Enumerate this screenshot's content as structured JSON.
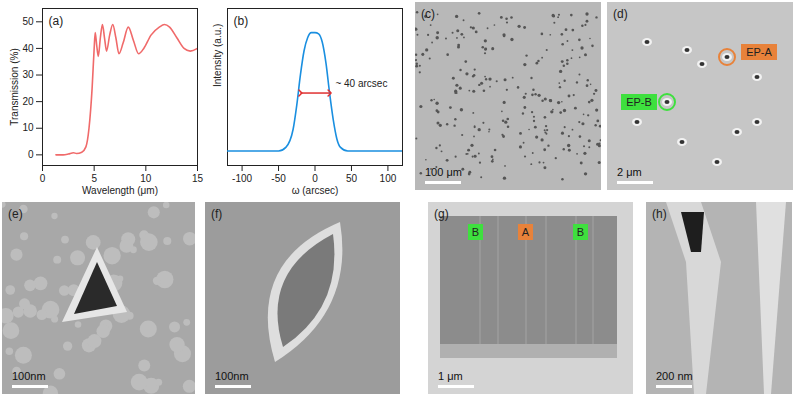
{
  "chart_data": [
    {
      "type": "line",
      "panel_label": "(a)",
      "x_label": "Wavelength (μm)",
      "y_label": "Transmission (%)",
      "color": "#f06a6a",
      "xlim": [
        0,
        15
      ],
      "xticks": [
        0,
        5,
        10,
        15
      ],
      "ylim": [
        -4,
        55
      ],
      "yticks": [
        0,
        10,
        20,
        30,
        40,
        50
      ],
      "x": [
        1.3,
        2,
        2.5,
        3,
        3.3,
        3.8,
        4.2,
        4.5,
        4.8,
        5.0,
        5.1,
        5.25,
        5.4,
        5.6,
        5.8,
        6.0,
        6.2,
        6.5,
        6.8,
        7.1,
        7.4,
        7.8,
        8.3,
        8.8,
        9.3,
        9.8,
        10.5,
        11.3,
        11.8,
        12.3,
        13,
        13.7,
        14.3,
        15
      ],
      "values": [
        0,
        0,
        0.3,
        0.8,
        0.5,
        1,
        3,
        10,
        25,
        40,
        46,
        41,
        37,
        44,
        49,
        44,
        39,
        45,
        49,
        44,
        38,
        42,
        48,
        43,
        38,
        40,
        45,
        48,
        49,
        48,
        44,
        40,
        39,
        40
      ]
    },
    {
      "type": "line",
      "panel_label": "(b)",
      "x_label": "ω (arcsec)",
      "y_label": "Intensity (a.u.)",
      "color": "#1a8fe0",
      "tick_labels": "x",
      "xlim": [
        -120,
        120
      ],
      "xticks": [
        -100,
        -50,
        0,
        50,
        100
      ],
      "ylim": [
        -0.1,
        1.2
      ],
      "x": [
        -120,
        -50,
        -40,
        -30,
        -25,
        -20,
        -15,
        -10,
        -5,
        0,
        5,
        10,
        15,
        20,
        25,
        30,
        35,
        45,
        120
      ],
      "values": [
        0.02,
        0.02,
        0.05,
        0.2,
        0.4,
        0.65,
        0.85,
        0.96,
        1.0,
        1.0,
        0.99,
        0.92,
        0.75,
        0.5,
        0.28,
        0.12,
        0.05,
        0.02,
        0.02
      ],
      "annotation": {
        "text": "~ 40 arcsec",
        "x": 28,
        "y": 0.58,
        "span": [
          -20,
          20
        ],
        "arrow_y": 0.5,
        "color": "#e03030"
      }
    }
  ],
  "images": [
    {
      "panel_label": "(c)",
      "scale_bar": "100 μm"
    },
    {
      "panel_label": "(d)",
      "scale_bar": "2 μm",
      "tags": [
        {
          "text": "EP-A",
          "color": "#e8823a"
        },
        {
          "text": "EP-B",
          "color": "#3ee03e"
        }
      ]
    },
    {
      "panel_label": "(e)",
      "scale_bar": "100nm"
    },
    {
      "panel_label": "(f)",
      "scale_bar": "100nm"
    },
    {
      "panel_label": "(g)",
      "scale_bar": "1 μm",
      "tags": [
        {
          "text": "B",
          "color": "#3ee03e"
        },
        {
          "text": "A",
          "color": "#e8823a"
        },
        {
          "text": "B",
          "color": "#3ee03e"
        }
      ]
    },
    {
      "panel_label": "(h)",
      "scale_bar": "200 nm"
    }
  ]
}
